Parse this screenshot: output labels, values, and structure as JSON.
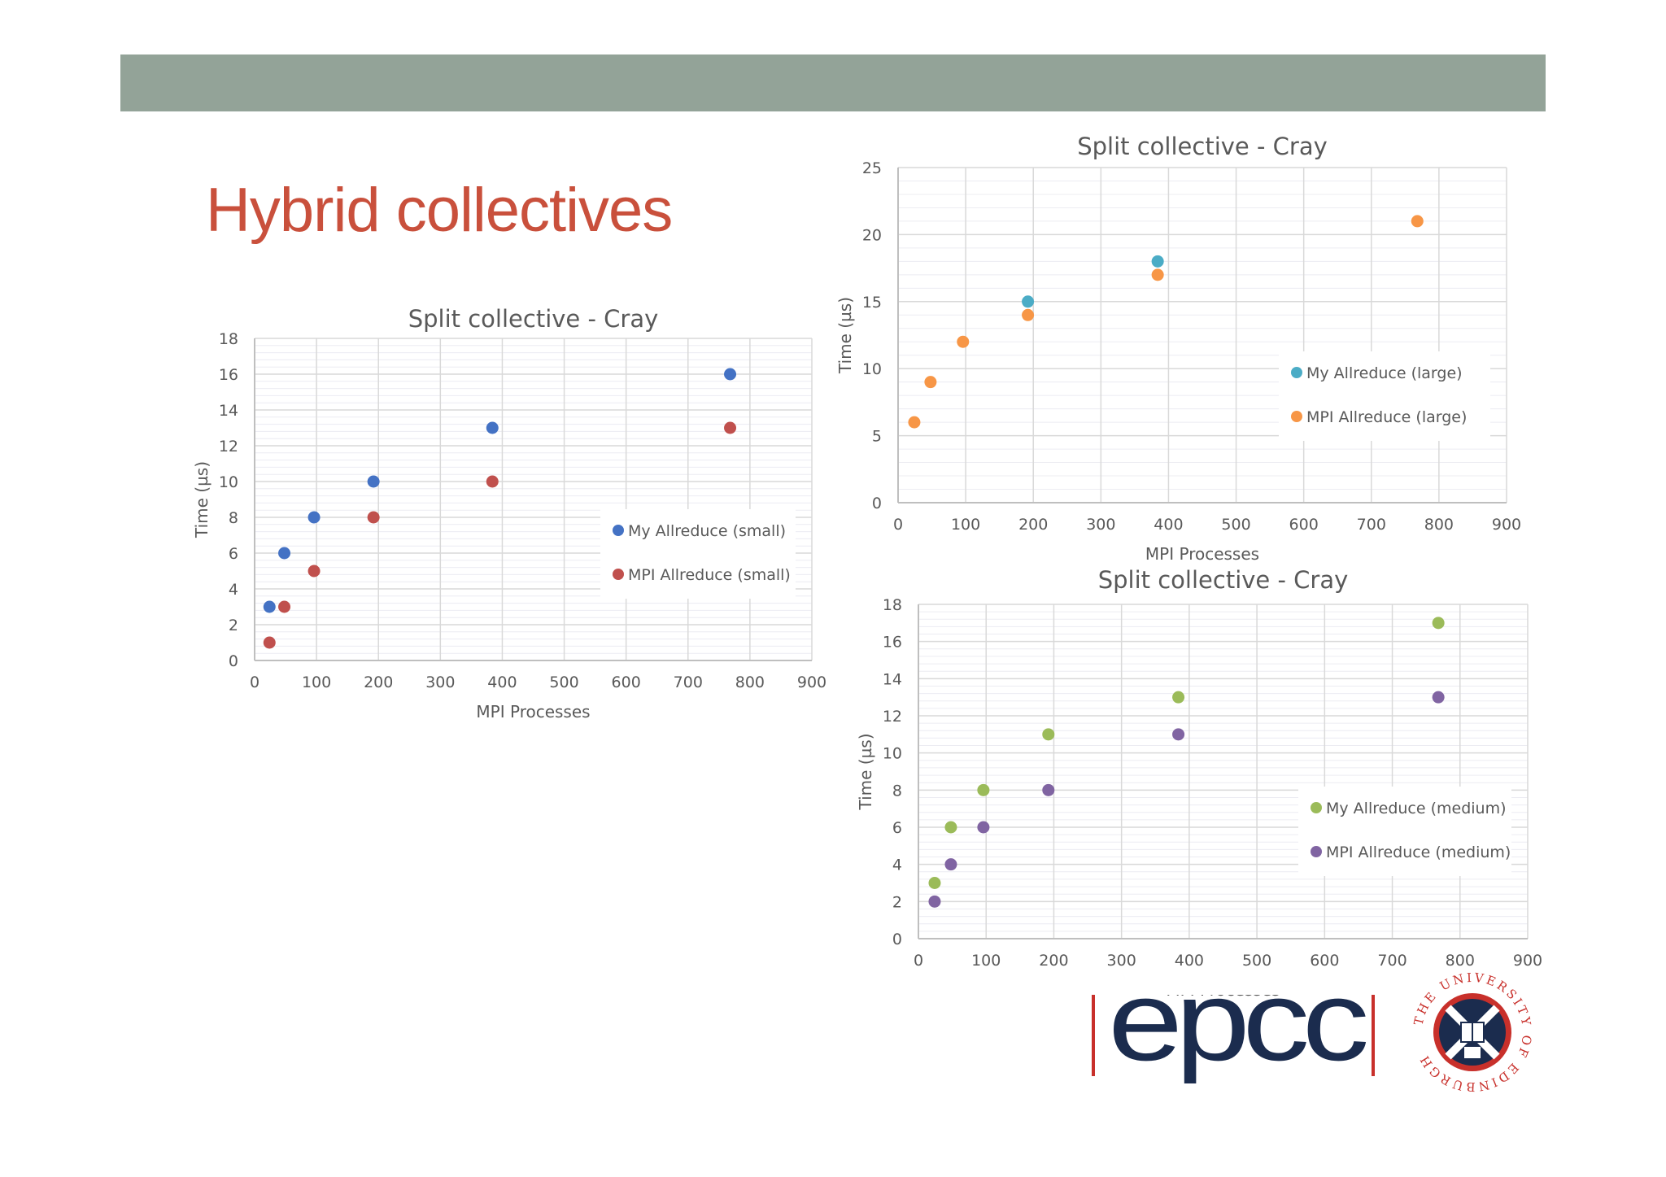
{
  "slide": {
    "title": "Hybrid collectives"
  },
  "colors": {
    "header_bar": "#93a398",
    "title": "#c9503c",
    "grid": "#d9d9d9",
    "epcc_blue": "#1b2c4e",
    "epcc_red": "#c8302b"
  },
  "logos": {
    "epcc": "epcc",
    "university_seal": "THE UNIVERSITY OF EDINBURGH"
  },
  "chart_data": [
    {
      "id": "small",
      "type": "scatter",
      "title": "Split collective - Cray",
      "xlabel": "MPI Processes",
      "ylabel": "Time (µs)",
      "xlim": [
        0,
        900
      ],
      "ylim": [
        0,
        18
      ],
      "xticks": [
        0,
        100,
        200,
        300,
        400,
        500,
        600,
        700,
        800,
        900
      ],
      "yticks": [
        0,
        2,
        4,
        6,
        8,
        10,
        12,
        14,
        16,
        18
      ],
      "grid": true,
      "legend_position": "middle-right",
      "series": [
        {
          "name": "My Allreduce (small)",
          "color": "#4472c4",
          "x": [
            24,
            48,
            96,
            192,
            384,
            768
          ],
          "y": [
            3,
            6,
            8,
            10,
            13,
            16
          ]
        },
        {
          "name": "MPI Allreduce (small)",
          "color": "#c0504d",
          "x": [
            24,
            48,
            96,
            192,
            384,
            768
          ],
          "y": [
            1,
            3,
            5,
            8,
            10,
            13
          ]
        }
      ]
    },
    {
      "id": "large",
      "type": "scatter",
      "title": "Split collective - Cray",
      "xlabel": "MPI Processes",
      "ylabel": "Time (µs)",
      "xlim": [
        0,
        900
      ],
      "ylim": [
        0,
        25
      ],
      "xticks": [
        0,
        100,
        200,
        300,
        400,
        500,
        600,
        700,
        800,
        900
      ],
      "yticks": [
        0,
        5,
        10,
        15,
        20,
        25
      ],
      "grid": true,
      "legend_position": "middle-right",
      "series": [
        {
          "name": "My Allreduce (large)",
          "color": "#4bacc6",
          "x": [
            192,
            384
          ],
          "y": [
            15,
            18
          ]
        },
        {
          "name": "MPI Allreduce (large)",
          "color": "#f79646",
          "x": [
            24,
            48,
            96,
            192,
            384,
            768
          ],
          "y": [
            6,
            9,
            12,
            14,
            17,
            21
          ]
        }
      ]
    },
    {
      "id": "medium",
      "type": "scatter",
      "title": "Split collective - Cray",
      "xlabel": "MPI Processes",
      "ylabel": "Time (µs)",
      "xlim": [
        0,
        900
      ],
      "ylim": [
        0,
        18
      ],
      "xticks": [
        0,
        100,
        200,
        300,
        400,
        500,
        600,
        700,
        800,
        900
      ],
      "yticks": [
        0,
        2,
        4,
        6,
        8,
        10,
        12,
        14,
        16,
        18
      ],
      "grid": true,
      "legend_position": "middle-right",
      "series": [
        {
          "name": "My Allreduce (medium)",
          "color": "#9bbb59",
          "x": [
            24,
            48,
            96,
            192,
            384,
            768
          ],
          "y": [
            3,
            6,
            8,
            11,
            13,
            17
          ]
        },
        {
          "name": "MPI Allreduce (medium)",
          "color": "#8064a2",
          "x": [
            24,
            48,
            96,
            192,
            384,
            768
          ],
          "y": [
            2,
            4,
            6,
            8,
            11,
            13
          ]
        }
      ]
    }
  ]
}
